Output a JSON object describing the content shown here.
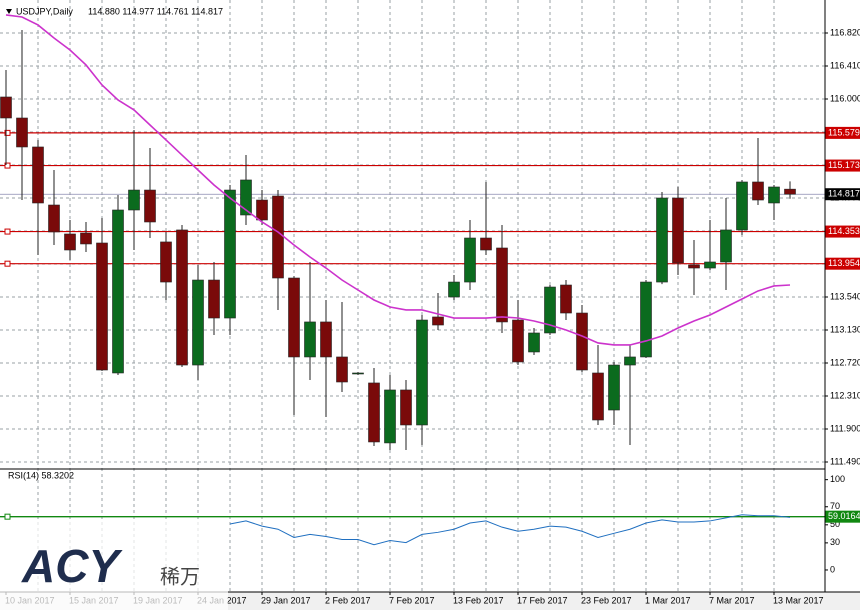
{
  "chart_data": {
    "type": "candlestick",
    "title": "USDJPY,Daily",
    "ohlc_text": "114.880 114.977 114.761 114.817",
    "categories": [
      "10 Jan 2017",
      null,
      null,
      null,
      "15 Jan 2017",
      null,
      null,
      null,
      "19 Jan 2017",
      null,
      null,
      null,
      "24 Jan 2017",
      null,
      null,
      null,
      "29 Jan 2017",
      null,
      null,
      null,
      "2 Feb 2017",
      null,
      null,
      null,
      "7 Feb 2017",
      null,
      null,
      null,
      "13 Feb 2017",
      null,
      null,
      null,
      "17 Feb 2017",
      null,
      null,
      null,
      "23 Feb 2017",
      null,
      null,
      null,
      "1 Mar 2017",
      null,
      null,
      null,
      "7 Mar 2017",
      null,
      null,
      null,
      "13 Mar 2017",
      null
    ],
    "open": [
      116.025,
      115.764,
      115.404,
      114.683,
      114.323,
      114.335,
      114.211,
      112.596,
      114.621,
      114.869,
      114.224,
      114.373,
      112.695,
      113.751,
      113.279,
      114.559,
      114.745,
      114.795,
      113.776,
      112.795,
      113.23,
      112.795,
      112.584,
      112.472,
      111.727,
      112.385,
      111.95,
      113.292,
      113.54,
      113.726,
      114.273,
      114.149,
      113.254,
      112.857,
      113.093,
      113.689,
      113.341,
      112.596,
      112.136,
      112.695,
      112.795,
      113.726,
      114.77,
      113.938,
      113.9,
      113.975,
      114.373,
      114.969,
      114.708,
      114.88
    ],
    "high": [
      116.36,
      116.857,
      115.49,
      115.118,
      114.497,
      114.472,
      114.522,
      114.808,
      115.615,
      115.391,
      114.348,
      114.435,
      113.938,
      113.975,
      114.932,
      115.304,
      114.869,
      114.869,
      113.8,
      113.975,
      113.503,
      113.478,
      112.609,
      112.658,
      112.571,
      112.509,
      113.317,
      113.59,
      113.813,
      114.497,
      114.969,
      114.435,
      113.503,
      113.155,
      113.689,
      113.751,
      113.441,
      112.944,
      112.733,
      112.944,
      113.751,
      114.845,
      114.908,
      114.249,
      114.497,
      114.77,
      114.994,
      115.516,
      114.932,
      114.977
    ],
    "low": [
      115.18,
      114.745,
      114.062,
      114.186,
      114.0,
      114.099,
      112.621,
      112.571,
      114.124,
      114.273,
      113.503,
      112.67,
      112.509,
      113.068,
      113.068,
      114.435,
      114.435,
      113.379,
      112.074,
      112.509,
      112.049,
      112.36,
      112.571,
      111.689,
      111.639,
      111.639,
      111.701,
      113.13,
      113.503,
      113.627,
      114.062,
      113.093,
      112.695,
      112.82,
      113.068,
      113.254,
      112.608,
      111.95,
      111.95,
      111.702,
      112.782,
      113.7,
      113.813,
      113.565,
      113.875,
      113.627,
      114.311,
      114.683,
      114.497,
      114.761
    ],
    "close": [
      115.764,
      115.404,
      114.708,
      114.348,
      114.124,
      114.199,
      112.633,
      114.621,
      114.869,
      114.472,
      113.726,
      112.695,
      113.751,
      113.279,
      114.869,
      114.994,
      114.497,
      113.776,
      112.795,
      113.23,
      112.795,
      112.484,
      112.596,
      111.739,
      112.385,
      111.95,
      113.254,
      113.192,
      113.726,
      114.273,
      114.124,
      113.23,
      112.733,
      113.093,
      113.664,
      113.341,
      112.633,
      112.012,
      112.695,
      112.795,
      113.726,
      114.77,
      113.963,
      113.9,
      113.975,
      114.373,
      114.969,
      114.745,
      114.907,
      114.817
    ],
    "up_color": "#0b6b1e",
    "down_color": "#7a0a0a",
    "ma": {
      "color": "#cc33cc",
      "values": [
        117.044,
        117.019,
        116.92,
        116.758,
        116.609,
        116.423,
        116.174,
        115.988,
        115.864,
        115.677,
        115.491,
        115.304,
        115.118,
        114.932,
        114.77,
        114.621,
        114.472,
        114.348,
        114.186,
        114.037,
        113.9,
        113.751,
        113.627,
        113.503,
        113.416,
        113.379,
        113.379,
        113.329,
        113.279,
        113.279,
        113.279,
        113.292,
        113.279,
        113.242,
        113.192,
        113.13,
        113.056,
        112.969,
        112.944,
        112.944,
        112.994,
        113.056,
        113.155,
        113.242,
        113.317,
        113.416,
        113.515,
        113.615,
        113.677,
        113.689
      ]
    },
    "levels": [
      115.579,
      115.173,
      114.353,
      113.954
    ],
    "level_color": "#cc0000",
    "ylim": [
      111.428,
      117.23
    ],
    "yticks": [
      {
        "value": 116.82,
        "label": "116.820"
      },
      {
        "value": 116.41,
        "label": "116.410"
      },
      {
        "value": 116,
        "label": "116.000"
      },
      {
        "value": 115.59,
        "label": "115.590"
      },
      {
        "value": 115.18,
        "label": "115.180"
      },
      {
        "value": 114.77,
        "label": "114.770"
      },
      {
        "value": 114.36,
        "label": "114.360"
      },
      {
        "value": 113.95,
        "label": "113.950"
      },
      {
        "value": 113.54,
        "label": "113.540"
      },
      {
        "value": 113.13,
        "label": "113.130"
      },
      {
        "value": 112.72,
        "label": "112.720"
      },
      {
        "value": 112.31,
        "label": "112.310"
      },
      {
        "value": 111.9,
        "label": "111.900"
      },
      {
        "value": 111.49,
        "label": "111.490"
      }
    ],
    "grid": true,
    "rsi": {
      "title": "RSI(14) 58.3202",
      "color": "#1f6fc0",
      "level": 59.0164,
      "level_color": "#118811",
      "ylim": [
        -24.4,
        110.7
      ],
      "yticks": [
        100,
        70,
        50,
        30,
        0
      ],
      "values": [
        null,
        null,
        null,
        null,
        null,
        null,
        null,
        null,
        null,
        null,
        null,
        null,
        null,
        null,
        50.9,
        54.3,
        48.6,
        45.1,
        36.0,
        39.4,
        37.1,
        33.7,
        33.7,
        28.0,
        32.6,
        30.3,
        39.4,
        41.7,
        45.1,
        52.0,
        54.3,
        47.4,
        42.9,
        45.1,
        48.6,
        47.4,
        42.9,
        36.0,
        40.6,
        45.1,
        52.0,
        55.4,
        53.1,
        53.1,
        54.3,
        57.7,
        61.1,
        60.0,
        60.0,
        58.3
      ]
    },
    "watermark": {
      "brand": "ACY",
      "subtitle": "稀万"
    }
  }
}
